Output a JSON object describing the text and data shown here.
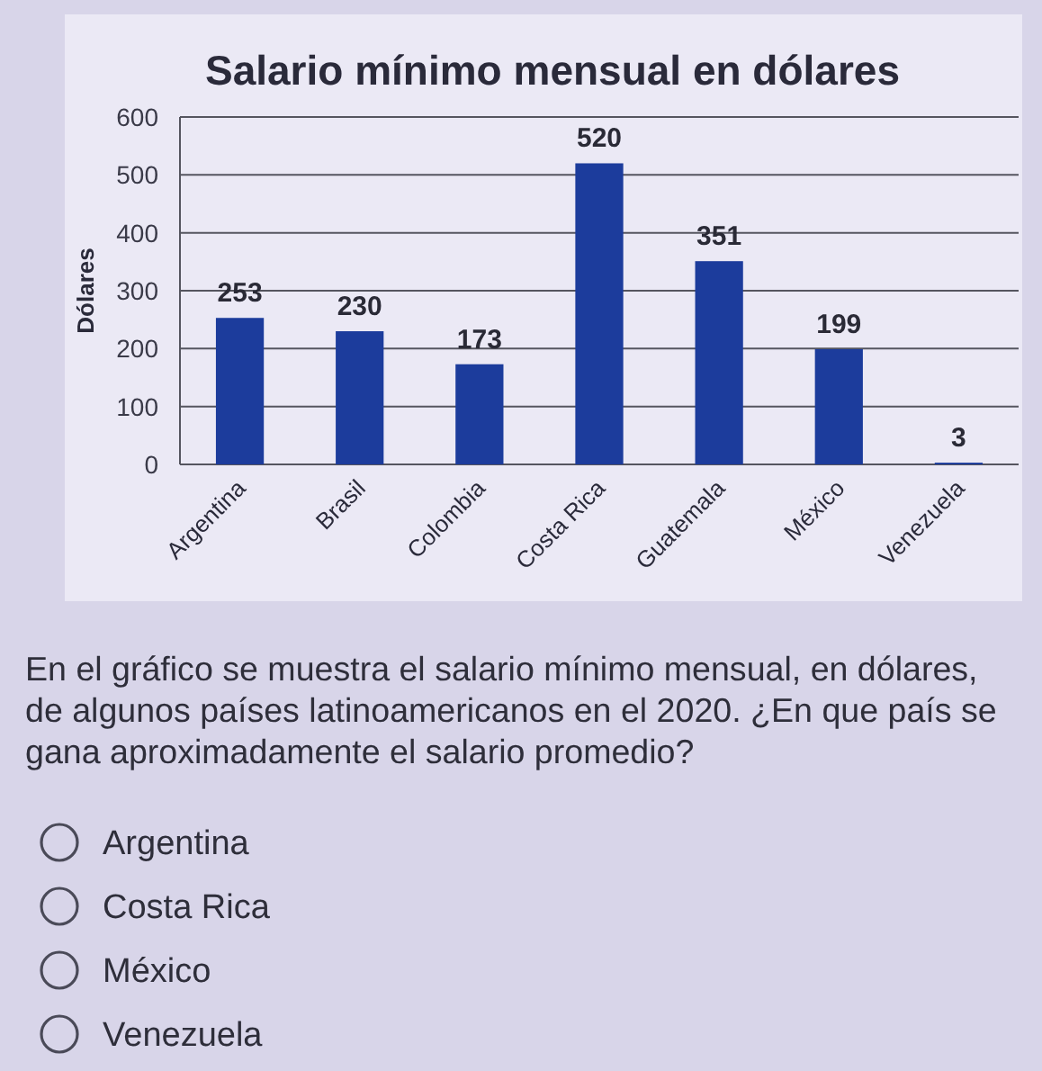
{
  "chart_data": {
    "type": "bar",
    "title": "Salario mínimo mensual en dólares",
    "ylabel": "Dólares",
    "categories": [
      "Argentina",
      "Brasil",
      "Colombia",
      "Costa Rica",
      "Guatemala",
      "México",
      "Venezuela"
    ],
    "values": [
      253,
      230,
      173,
      520,
      351,
      199,
      3
    ],
    "color": "#1c3c9c",
    "ylim": [
      0,
      600
    ],
    "yticks": [
      0,
      100,
      200,
      300,
      400,
      500,
      600
    ],
    "grid": "y",
    "data_labels": true,
    "annotations": [
      "En el gráfico se muestra el salario mínimo mensual, en dólares, de algunos países latinoamericanos en el 2020. ¿En que país se gana aproximadamente el salario promedio?",
      "Argentina",
      "Costa Rica",
      "México",
      "Venezuela"
    ]
  }
}
